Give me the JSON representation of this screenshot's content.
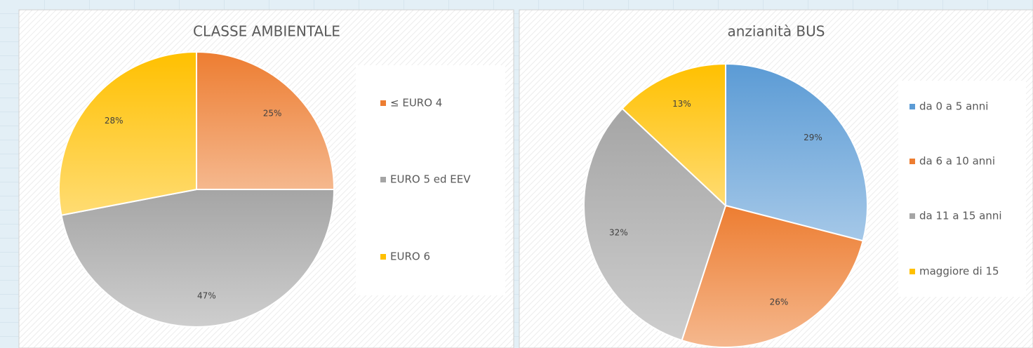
{
  "chart_data": [
    {
      "type": "pie",
      "title": "CLASSE AMBIENTALE",
      "categories": [
        "≤ EURO 4",
        "EURO 5 ed EEV",
        "EURO 6"
      ],
      "values": [
        25,
        47,
        28
      ],
      "value_labels": [
        "25%",
        "47%",
        "28%"
      ],
      "colors": [
        "#ED7D31",
        "#A5A5A5",
        "#FFC000"
      ],
      "legend": "right"
    },
    {
      "type": "pie",
      "title": "anzianità BUS",
      "categories": [
        "da 0 a 5 anni",
        "da 6 a 10 anni",
        "da 11 a 15 anni",
        "maggiore di 15"
      ],
      "values": [
        29,
        26,
        32,
        13
      ],
      "value_labels": [
        "29%",
        "26%",
        "32%",
        "13%"
      ],
      "colors": [
        "#5B9BD5",
        "#ED7D31",
        "#A5A5A5",
        "#FFC000"
      ],
      "legend": "right"
    }
  ]
}
